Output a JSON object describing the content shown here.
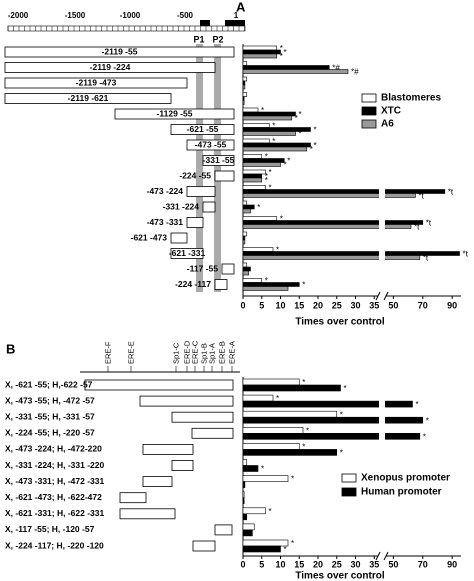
{
  "chart_data": [
    {
      "type": "bar",
      "panel": "A",
      "map_ticks": [
        "-2000",
        "-1500",
        "-1000",
        "-500",
        "1"
      ],
      "regions": [
        "P1",
        "P2"
      ],
      "categories": [
        "-2119 -55",
        "-2119 -224",
        "-2119 -473",
        "-2119 -621",
        "-1129 -55",
        "-621 -55",
        "-473 -55",
        "-331 -55",
        "-224 -55",
        "-473 -224",
        "-331 -224",
        "-473 -331",
        "-621 -473",
        "-621 -331",
        "-117 -55",
        "-224 -117"
      ],
      "series": [
        {
          "name": "Blastomeres",
          "color": "#ffffff",
          "values": [
            9,
            1,
            1,
            1,
            4,
            7,
            7,
            5,
            6,
            6,
            1,
            9,
            1,
            8,
            1,
            5
          ],
          "annotations": [
            "*",
            null,
            null,
            null,
            "*",
            "*",
            "*",
            "*",
            "*",
            "*",
            null,
            "*",
            null,
            "*",
            null,
            "*"
          ]
        },
        {
          "name": "XTC",
          "color": "#000000",
          "values": [
            10,
            23,
            0.5,
            0.3,
            14,
            18,
            18,
            11,
            5,
            85,
            3,
            70,
            0.5,
            95,
            2,
            15
          ],
          "annotations": [
            "*",
            "*#",
            null,
            null,
            "*",
            "*",
            "*",
            "*",
            "*",
            "*t",
            "*",
            "*t",
            null,
            "*t",
            null,
            "*"
          ]
        },
        {
          "name": "A6",
          "color": "#999999",
          "values": [
            9,
            28,
            0.5,
            0.3,
            13,
            14,
            17,
            10,
            5,
            65,
            2,
            62,
            0.5,
            68,
            1.5,
            12
          ],
          "annotations": [
            "*",
            "*#",
            null,
            null,
            "*",
            "*",
            "*",
            "*",
            "*",
            "*t",
            null,
            "*t",
            null,
            "*t",
            null,
            null
          ]
        }
      ],
      "xlim": [
        0,
        96
      ],
      "xbreak": [
        36,
        45
      ],
      "xticks": [
        0,
        5,
        10,
        15,
        20,
        25,
        30,
        35,
        50,
        70,
        90
      ],
      "xlabel": "Times over control"
    },
    {
      "type": "bar",
      "panel": "B",
      "elements": [
        "ERE-F",
        "ERE-E",
        "Sp1-C",
        "ERE-D",
        "ERE-C",
        "Sp1-B",
        "Sp1-A",
        "ERE-B",
        "ERE-A"
      ],
      "categories": [
        "X, -621 -55; H,-622 -57",
        "X, -473 -55; H, -472 -57",
        "X, -331 -55; H, -331 -57",
        "X, -224 -55; H, -220 -57",
        "X, -473 -224; H, -472-220",
        "X, -331 -224; H, -331 -220",
        "X, -473 -331; H, -472 -331",
        "X, -621 -473; H, -622-472",
        "X, -621 -331; H, -622 -331",
        "X, -117 -55; H, -120 -57",
        "X, -224 -117; H, -220 -120"
      ],
      "series": [
        {
          "name": "Xenopus promoter",
          "color": "#ffffff",
          "values": [
            15,
            8,
            25,
            16,
            15,
            1,
            12,
            0.3,
            6,
            3,
            12
          ],
          "annotations": [
            "*",
            "*",
            "*",
            "*",
            "*",
            null,
            "*",
            null,
            "*",
            null,
            "*"
          ]
        },
        {
          "name": "Human promoter",
          "color": "#000000",
          "values": [
            26,
            63,
            70,
            68,
            25,
            4,
            0.5,
            0.3,
            1,
            2.5,
            10
          ],
          "annotations": [
            "*",
            "*",
            "*",
            "*",
            "*",
            "*",
            null,
            null,
            null,
            null,
            "*"
          ]
        }
      ],
      "xlim": [
        0,
        96
      ],
      "xbreak": [
        36,
        45
      ],
      "xticks": [
        0,
        5,
        10,
        15,
        20,
        25,
        30,
        35,
        50,
        70,
        90
      ],
      "xlabel": "Times over control"
    }
  ]
}
